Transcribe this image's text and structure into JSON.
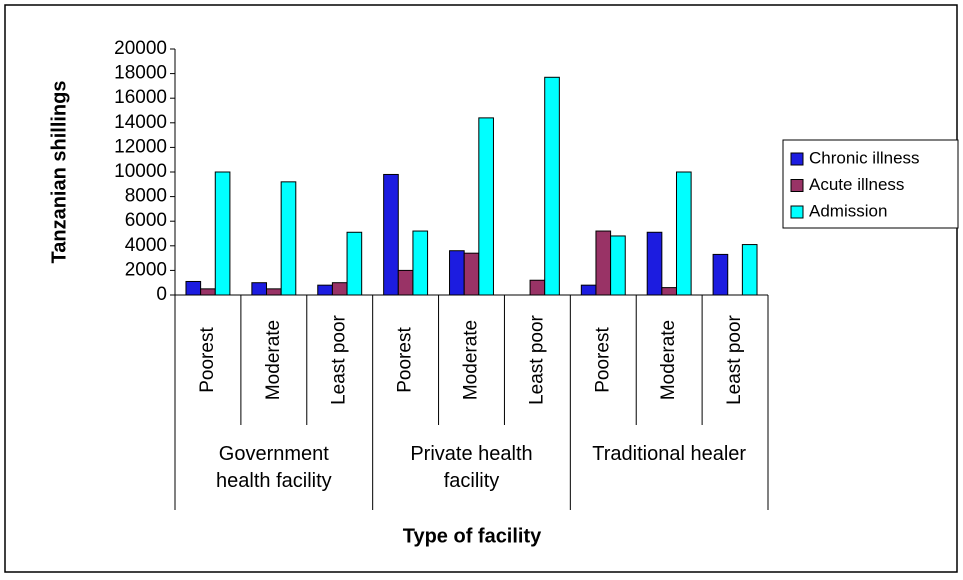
{
  "chart_data": {
    "type": "bar",
    "y_label": "Tanzanian shillings",
    "x_label": "Type of facility",
    "groups": [
      "Government health facility",
      "Private health facility",
      "Traditional healer"
    ],
    "categories": [
      "Poorest",
      "Moderate",
      "Least poor",
      "Poorest",
      "Moderate",
      "Least poor",
      "Poorest",
      "Moderate",
      "Least poor"
    ],
    "series": [
      {
        "name": "Chronic illness",
        "color": "#1c1ce0",
        "values": [
          1100,
          1000,
          800,
          9800,
          3600,
          0,
          800,
          5100,
          3300
        ]
      },
      {
        "name": "Acute illness",
        "color": "#993366",
        "values": [
          500,
          500,
          1000,
          2000,
          3400,
          1200,
          5200,
          600,
          0
        ]
      },
      {
        "name": "Admission",
        "color": "#00ffff",
        "values": [
          10000,
          9200,
          5100,
          5200,
          14400,
          17700,
          4800,
          10000,
          4100
        ]
      }
    ],
    "ylim": [
      0,
      20000
    ],
    "yticks": [
      0,
      2000,
      4000,
      6000,
      8000,
      10000,
      12000,
      14000,
      16000,
      18000,
      20000
    ],
    "legend": "right",
    "grid": false
  }
}
